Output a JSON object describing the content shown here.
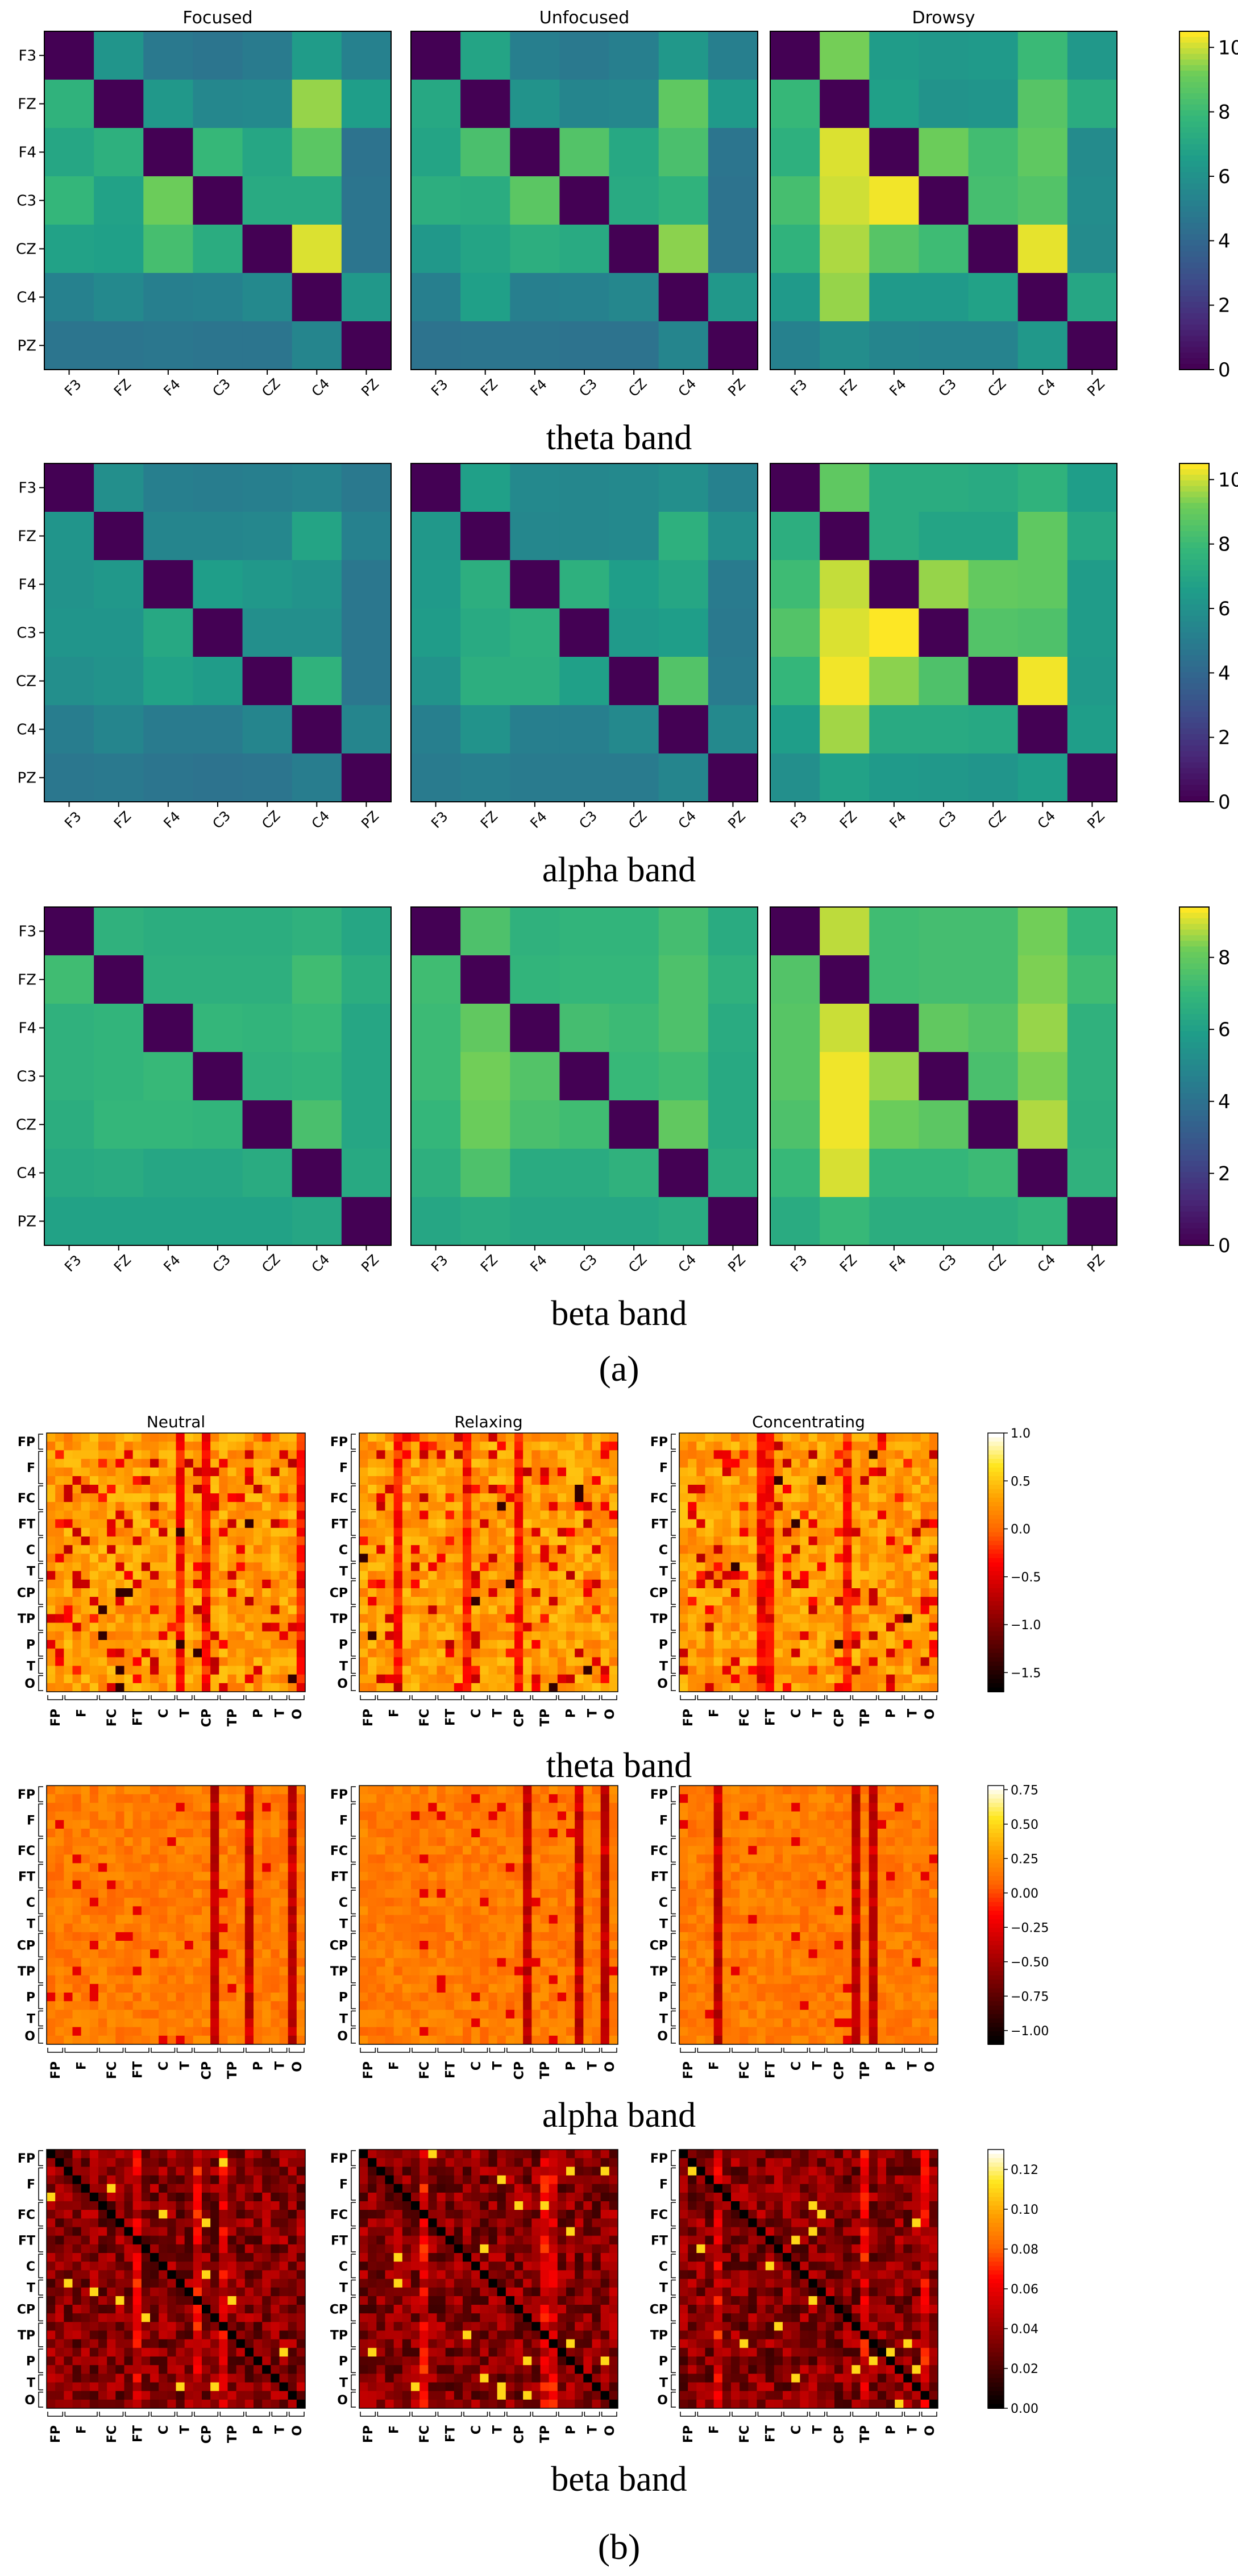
{
  "figure": {
    "part_a_label": "(a)",
    "part_b_label": "(b)"
  },
  "colors": {
    "diagonal": "#440154",
    "panel_b_diagonal": "#000000"
  },
  "chart_data": [
    {
      "id": "a-theta",
      "type": "heatmap",
      "colormap": "viridis",
      "band_label": "theta band",
      "panel_titles": [
        "Focused",
        "Unfocused",
        "Drowsy"
      ],
      "labels": [
        "F3",
        "FZ",
        "F4",
        "C3",
        "CZ",
        "C4",
        "PZ"
      ],
      "vmin": 0,
      "vmax": 10.5,
      "colorbar_ticks": [
        0,
        2,
        4,
        6,
        8,
        10
      ],
      "matrices": [
        [
          [
            0,
            6.2,
            4.8,
            4.6,
            4.9,
            6.5,
            5.2
          ],
          [
            7.6,
            0,
            6.3,
            5.5,
            5.6,
            9.6,
            6.6
          ],
          [
            7.0,
            7.5,
            0,
            7.9,
            7.0,
            8.8,
            4.5
          ],
          [
            7.8,
            6.8,
            9.2,
            0,
            7.2,
            7.2,
            4.6
          ],
          [
            6.8,
            6.7,
            8.3,
            7.3,
            0,
            10.2,
            4.6
          ],
          [
            5.2,
            5.6,
            5.1,
            5.2,
            5.6,
            0,
            6.3
          ],
          [
            4.6,
            4.6,
            4.7,
            4.6,
            4.6,
            5.4,
            0
          ]
        ],
        [
          [
            0,
            6.9,
            5.1,
            4.8,
            5.1,
            6.3,
            5.1
          ],
          [
            7.1,
            0,
            6.1,
            5.4,
            5.5,
            8.9,
            6.4
          ],
          [
            6.9,
            8.4,
            0,
            8.6,
            7.1,
            8.4,
            4.6
          ],
          [
            7.4,
            7.3,
            8.8,
            0,
            7.2,
            7.6,
            4.5
          ],
          [
            6.3,
            6.9,
            7.4,
            7.2,
            0,
            9.5,
            4.5
          ],
          [
            5.1,
            6.7,
            5.1,
            5.2,
            5.5,
            0,
            6.3
          ],
          [
            4.5,
            4.6,
            4.6,
            4.5,
            4.5,
            5.4,
            0
          ]
        ],
        [
          [
            0,
            9.3,
            6.5,
            6.3,
            6.4,
            8.0,
            6.3
          ],
          [
            7.9,
            0,
            6.7,
            6.1,
            6.2,
            8.7,
            7.3
          ],
          [
            7.5,
            10.2,
            0,
            9.2,
            8.2,
            8.9,
            5.7
          ],
          [
            8.3,
            10.1,
            10.4,
            0,
            8.3,
            8.6,
            5.8
          ],
          [
            7.6,
            9.8,
            8.7,
            8.1,
            0,
            10.3,
            5.7
          ],
          [
            6.4,
            9.6,
            6.4,
            6.4,
            6.8,
            0,
            7.0
          ],
          [
            5.2,
            5.8,
            5.4,
            5.3,
            5.3,
            6.3,
            0
          ]
        ]
      ]
    },
    {
      "id": "a-alpha",
      "type": "heatmap",
      "colormap": "viridis",
      "band_label": "alpha band",
      "panel_titles": [
        "",
        "",
        ""
      ],
      "labels": [
        "F3",
        "FZ",
        "F4",
        "C3",
        "CZ",
        "C4",
        "PZ"
      ],
      "vmin": 0,
      "vmax": 10.5,
      "colorbar_ticks": [
        0,
        2,
        4,
        6,
        8,
        10
      ],
      "matrices": [
        [
          [
            0,
            5.9,
            5.1,
            5.0,
            5.1,
            5.3,
            4.8
          ],
          [
            6.2,
            0,
            5.4,
            5.4,
            5.5,
            6.9,
            5.2
          ],
          [
            6.1,
            6.3,
            0,
            6.6,
            6.3,
            6.1,
            4.7
          ],
          [
            6.2,
            6.2,
            7.1,
            0,
            5.9,
            5.9,
            4.7
          ],
          [
            5.9,
            6.1,
            6.8,
            6.5,
            0,
            7.6,
            4.7
          ],
          [
            5.0,
            5.4,
            4.9,
            4.9,
            5.4,
            0,
            5.4
          ],
          [
            4.7,
            4.8,
            4.6,
            4.5,
            4.6,
            5.0,
            0
          ]
        ],
        [
          [
            0,
            6.7,
            5.6,
            5.5,
            5.6,
            5.9,
            5.2
          ],
          [
            6.3,
            0,
            5.5,
            5.5,
            5.6,
            7.5,
            5.9
          ],
          [
            6.4,
            7.4,
            0,
            7.5,
            6.6,
            7.0,
            4.9
          ],
          [
            6.5,
            7.2,
            7.5,
            0,
            6.4,
            6.6,
            4.8
          ],
          [
            6.1,
            7.4,
            7.4,
            6.7,
            0,
            8.6,
            4.9
          ],
          [
            5.1,
            6.1,
            5.1,
            5.1,
            5.6,
            0,
            5.6
          ],
          [
            4.9,
            5.1,
            4.9,
            4.9,
            4.9,
            5.4,
            0
          ]
        ],
        [
          [
            0,
            8.9,
            7.3,
            7.3,
            7.2,
            7.6,
            6.6
          ],
          [
            7.4,
            0,
            7.3,
            6.9,
            6.9,
            8.9,
            7.1
          ],
          [
            8.1,
            10.0,
            0,
            9.6,
            9.0,
            8.9,
            6.5
          ],
          [
            8.6,
            10.2,
            10.5,
            0,
            8.6,
            8.5,
            6.5
          ],
          [
            7.8,
            10.4,
            9.5,
            8.5,
            0,
            10.4,
            6.4
          ],
          [
            6.6,
            9.7,
            7.2,
            7.2,
            7.1,
            0,
            6.6
          ],
          [
            5.9,
            6.8,
            6.4,
            6.3,
            6.2,
            6.6,
            0
          ]
        ]
      ]
    },
    {
      "id": "a-beta",
      "type": "heatmap",
      "colormap": "viridis",
      "band_label": "beta band",
      "panel_titles": [
        "",
        "",
        ""
      ],
      "labels": [
        "F3",
        "FZ",
        "F4",
        "C3",
        "CZ",
        "C4",
        "PZ"
      ],
      "vmin": 0,
      "vmax": 9.4,
      "colorbar_ticks": [
        0,
        2,
        4,
        6,
        8
      ],
      "matrices": [
        [
          [
            0,
            6.8,
            6.6,
            6.6,
            6.6,
            6.8,
            6.3
          ],
          [
            7.3,
            0,
            6.7,
            6.7,
            6.7,
            7.3,
            6.6
          ],
          [
            6.8,
            6.9,
            0,
            7.0,
            6.9,
            7.1,
            6.3
          ],
          [
            6.8,
            6.9,
            7.1,
            0,
            6.8,
            6.9,
            6.3
          ],
          [
            6.6,
            7.0,
            7.0,
            6.9,
            0,
            7.5,
            6.3
          ],
          [
            6.4,
            6.5,
            6.3,
            6.3,
            6.5,
            0,
            6.4
          ],
          [
            6.1,
            6.1,
            6.1,
            6.1,
            6.1,
            6.3,
            0
          ]
        ],
        [
          [
            0,
            7.6,
            6.8,
            6.9,
            6.9,
            7.4,
            6.5
          ],
          [
            7.3,
            0,
            6.9,
            7.0,
            7.0,
            7.6,
            6.8
          ],
          [
            7.2,
            8.0,
            0,
            7.4,
            7.2,
            7.6,
            6.5
          ],
          [
            7.2,
            8.3,
            7.7,
            0,
            7.1,
            7.3,
            6.4
          ],
          [
            7.0,
            8.2,
            7.5,
            7.3,
            0,
            8.0,
            6.4
          ],
          [
            6.7,
            7.6,
            6.5,
            6.5,
            6.8,
            0,
            6.6
          ],
          [
            6.3,
            6.5,
            6.3,
            6.3,
            6.3,
            6.5,
            0
          ]
        ],
        [
          [
            0,
            8.9,
            7.3,
            7.4,
            7.4,
            8.3,
            7.0
          ],
          [
            7.7,
            0,
            7.3,
            7.4,
            7.4,
            8.4,
            7.3
          ],
          [
            7.8,
            9.0,
            0,
            8.0,
            7.7,
            8.6,
            6.8
          ],
          [
            7.8,
            9.3,
            8.6,
            0,
            7.5,
            8.4,
            6.8
          ],
          [
            7.6,
            9.3,
            8.2,
            7.9,
            0,
            8.8,
            6.7
          ],
          [
            7.1,
            9.1,
            7.0,
            7.0,
            7.2,
            0,
            6.8
          ],
          [
            6.5,
            7.1,
            6.6,
            6.6,
            6.6,
            6.9,
            0
          ]
        ]
      ]
    },
    {
      "id": "b-theta",
      "type": "heatmap",
      "colormap": "afmhot",
      "band_label": "theta band",
      "panel_titles": [
        "Neutral",
        "Relaxing",
        "Concentrating"
      ],
      "y_labels": [
        "FP",
        "F",
        "FC",
        "FT",
        "C",
        "T",
        "CP",
        "TP",
        "P",
        "T",
        "O"
      ],
      "x_labels": [
        "FP",
        "F",
        "FC",
        "FT",
        "C",
        "T",
        "CP",
        "TP",
        "P",
        "T",
        "O"
      ],
      "size": 30,
      "vmin": -1.7,
      "vmax": 1.0,
      "colorbar_ticks": [
        1.0,
        0.5,
        0.0,
        -0.5,
        -1.0,
        -1.5
      ],
      "colorbar_tick_labels": [
        "1.0",
        "0.5",
        "0.0",
        "−0.5",
        "−1.0",
        "−1.5"
      ]
    },
    {
      "id": "b-alpha",
      "type": "heatmap",
      "colormap": "afmhot",
      "band_label": "alpha band",
      "panel_titles": [
        "",
        "",
        ""
      ],
      "y_labels": [
        "FP",
        "F",
        "FC",
        "FT",
        "C",
        "T",
        "CP",
        "TP",
        "P",
        "T",
        "O"
      ],
      "x_labels": [
        "FP",
        "F",
        "FC",
        "FT",
        "C",
        "T",
        "CP",
        "TP",
        "P",
        "T",
        "O"
      ],
      "size": 30,
      "vmin": -1.1,
      "vmax": 0.78,
      "colorbar_ticks": [
        0.75,
        0.5,
        0.25,
        0.0,
        -0.25,
        -0.5,
        -0.75,
        -1.0
      ],
      "colorbar_tick_labels": [
        "0.75",
        "0.50",
        "0.25",
        "0.00",
        "−0.25",
        "−0.50",
        "−0.75",
        "−1.00"
      ]
    },
    {
      "id": "b-beta",
      "type": "heatmap",
      "colormap": "afmhot",
      "band_label": "beta band",
      "panel_titles": [
        "",
        "",
        ""
      ],
      "y_labels": [
        "FP",
        "F",
        "FC",
        "FT",
        "C",
        "T",
        "CP",
        "TP",
        "P",
        "T",
        "O"
      ],
      "x_labels": [
        "FP",
        "F",
        "FC",
        "FT",
        "C",
        "T",
        "CP",
        "TP",
        "P",
        "T",
        "O"
      ],
      "size": 30,
      "vmin": 0.0,
      "vmax": 0.13,
      "colorbar_ticks": [
        0.12,
        0.1,
        0.08,
        0.06,
        0.04,
        0.02,
        0.0
      ],
      "colorbar_tick_labels": [
        "0.12",
        "0.10",
        "0.08",
        "0.06",
        "0.04",
        "0.02",
        "0.00"
      ]
    }
  ]
}
